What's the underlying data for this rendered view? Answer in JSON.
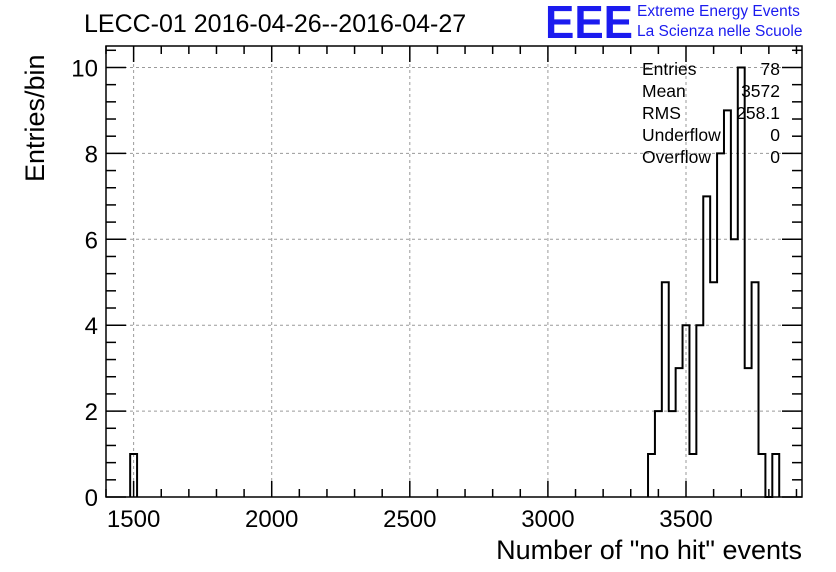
{
  "chart_data": {
    "type": "bar",
    "title": "LECC-01 2016-04-26--2016-04-27",
    "xlabel": "Number of \"no hit\" events",
    "ylabel": "Entries/bin",
    "xlim": [
      1400,
      3920
    ],
    "ylim": [
      0,
      10.5
    ],
    "x_ticks": [
      1500,
      2000,
      2500,
      3000,
      3500
    ],
    "y_ticks": [
      0,
      2,
      4,
      6,
      8,
      10
    ],
    "x_tick_labels": [
      "1500",
      "2000",
      "2500",
      "3000",
      "3500"
    ],
    "y_tick_labels": [
      "0",
      "2",
      "4",
      "6",
      "8",
      "10"
    ],
    "grid": true,
    "bin_width": 25,
    "bins": [
      {
        "x0": 1487.5,
        "value": 1
      },
      {
        "x0": 3362.5,
        "value": 1
      },
      {
        "x0": 3387.5,
        "value": 2
      },
      {
        "x0": 3412.5,
        "value": 5
      },
      {
        "x0": 3437.5,
        "value": 2
      },
      {
        "x0": 3462.5,
        "value": 3
      },
      {
        "x0": 3487.5,
        "value": 4
      },
      {
        "x0": 3512.5,
        "value": 1
      },
      {
        "x0": 3537.5,
        "value": 4
      },
      {
        "x0": 3562.5,
        "value": 7
      },
      {
        "x0": 3587.5,
        "value": 5
      },
      {
        "x0": 3612.5,
        "value": 8
      },
      {
        "x0": 3637.5,
        "value": 9
      },
      {
        "x0": 3662.5,
        "value": 6
      },
      {
        "x0": 3687.5,
        "value": 10
      },
      {
        "x0": 3712.5,
        "value": 3
      },
      {
        "x0": 3737.5,
        "value": 5
      },
      {
        "x0": 3762.5,
        "value": 1
      },
      {
        "x0": 3787.5,
        "value": 0
      },
      {
        "x0": 3812.5,
        "value": 1
      }
    ],
    "stats": [
      {
        "label": "Entries",
        "value": "78"
      },
      {
        "label": "Mean",
        "value": "3572"
      },
      {
        "label": "RMS",
        "value": "258.1"
      },
      {
        "label": "Underflow",
        "value": "0"
      },
      {
        "label": "Overflow",
        "value": "0"
      }
    ]
  },
  "logo": {
    "mark": "EEE",
    "line1": "Extreme Energy Events",
    "line2": "La Scienza nelle Scuole",
    "color": "#1b1bef"
  }
}
